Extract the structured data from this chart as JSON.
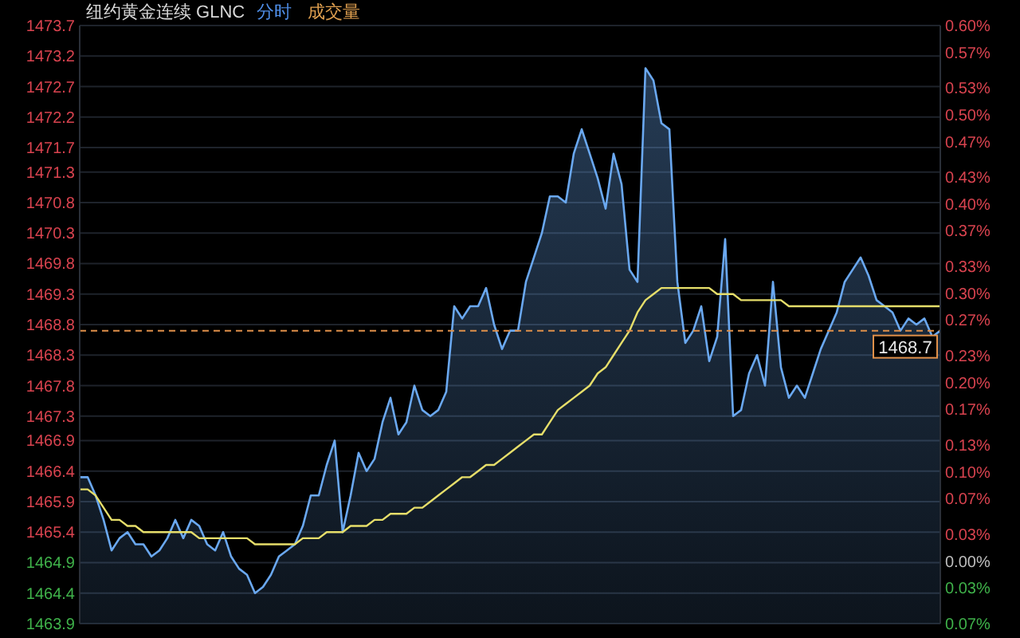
{
  "chart_data": {
    "type": "area",
    "title": "纽约黄金连续 GLNC",
    "annotations": [
      "分时",
      "成交量"
    ],
    "categories": [
      null,
      null,
      null,
      null,
      null,
      null,
      null,
      null,
      null,
      null,
      null,
      null,
      null,
      null,
      null,
      null,
      null,
      null,
      null,
      null,
      null,
      null,
      null,
      null,
      null,
      null,
      null,
      null,
      null,
      null,
      null,
      null,
      null,
      null,
      null,
      null,
      null,
      null,
      null,
      null,
      null,
      null,
      null,
      null,
      null,
      null,
      null,
      null,
      null,
      null,
      null,
      null,
      null,
      null,
      null,
      null,
      null,
      null,
      null,
      null,
      null,
      null,
      null,
      null,
      null,
      null,
      null,
      null,
      null,
      null,
      null,
      null,
      null,
      null,
      null,
      null,
      null,
      null,
      null,
      null,
      null,
      null,
      null,
      null,
      null,
      null,
      null,
      null,
      null,
      null,
      null,
      null,
      null,
      null,
      null,
      null,
      null,
      null,
      null,
      null,
      null,
      null,
      null,
      null,
      null,
      null,
      null,
      null,
      null
    ],
    "series": [
      {
        "type": "area",
        "color": "#6aa8f0",
        "values": [
          1466.3,
          1466.3,
          1466.0,
          1465.6,
          1465.1,
          1465.3,
          1465.4,
          1465.2,
          1465.2,
          1465.0,
          1465.1,
          1465.3,
          1465.6,
          1465.3,
          1465.6,
          1465.5,
          1465.2,
          1465.1,
          1465.4,
          1465.0,
          1464.8,
          1464.7,
          1464.4,
          1464.5,
          1464.7,
          1465.0,
          1465.1,
          1465.2,
          1465.5,
          1466.0,
          1466.0,
          1466.5,
          1466.9,
          1465.4,
          1466.0,
          1466.7,
          1466.4,
          1466.6,
          1467.2,
          1467.6,
          1467.0,
          1467.2,
          1467.8,
          1467.4,
          1467.3,
          1467.4,
          1467.7,
          1469.1,
          1468.9,
          1469.1,
          1469.1,
          1469.4,
          1468.8,
          1468.4,
          1468.7,
          1468.7,
          1469.5,
          1469.9,
          1470.3,
          1470.9,
          1470.9,
          1470.8,
          1471.6,
          1472.0,
          1471.6,
          1471.2,
          1470.7,
          1471.6,
          1471.1,
          1469.7,
          1469.5,
          1473.0,
          1472.8,
          1472.1,
          1472.0,
          1469.5,
          1468.5,
          1468.7,
          1469.1,
          1468.2,
          1468.6,
          1470.2,
          1467.3,
          1467.4,
          1468.0,
          1468.3,
          1467.8,
          1469.5,
          1468.1,
          1467.6,
          1467.8,
          1467.6,
          1468.0,
          1468.4,
          1468.7,
          1469.0,
          1469.5,
          1469.7,
          1469.9,
          1469.6,
          1469.2,
          1469.1,
          1469.0,
          1468.7,
          1468.9,
          1468.8,
          1468.9,
          1468.6,
          1468.7
        ]
      },
      {
        "type": "line",
        "color": "#e6de6a",
        "values": [
          1466.1,
          1466.1,
          1466.0,
          1465.8,
          1465.6,
          1465.6,
          1465.5,
          1465.5,
          1465.4,
          1465.4,
          1465.4,
          1465.4,
          1465.4,
          1465.4,
          1465.4,
          1465.3,
          1465.3,
          1465.3,
          1465.3,
          1465.3,
          1465.3,
          1465.3,
          1465.2,
          1465.2,
          1465.2,
          1465.2,
          1465.2,
          1465.2,
          1465.3,
          1465.3,
          1465.3,
          1465.4,
          1465.4,
          1465.4,
          1465.5,
          1465.5,
          1465.5,
          1465.6,
          1465.6,
          1465.7,
          1465.7,
          1465.7,
          1465.8,
          1465.8,
          1465.9,
          1466.0,
          1466.1,
          1466.2,
          1466.3,
          1466.3,
          1466.4,
          1466.5,
          1466.5,
          1466.6,
          1466.7,
          1466.8,
          1466.9,
          1467.0,
          1467.0,
          1467.2,
          1467.4,
          1467.5,
          1467.6,
          1467.7,
          1467.8,
          1468.0,
          1468.1,
          1468.3,
          1468.5,
          1468.7,
          1469.0,
          1469.2,
          1469.3,
          1469.4,
          1469.4,
          1469.4,
          1469.4,
          1469.4,
          1469.4,
          1469.4,
          1469.3,
          1469.3,
          1469.3,
          1469.2,
          1469.2,
          1469.2,
          1469.2,
          1469.2,
          1469.2,
          1469.1,
          1469.1,
          1469.1,
          1469.1,
          1469.1,
          1469.1,
          1469.1,
          1469.1,
          1469.1,
          1469.1,
          1469.1,
          1469.1,
          1469.1,
          1469.1,
          1469.1,
          1469.1,
          1469.1,
          1469.1,
          1469.1,
          1469.1
        ]
      }
    ],
    "ylim": [
      1463.9,
      1473.7
    ],
    "yticks": [
      1463.9,
      1464.4,
      1464.9,
      1465.4,
      1465.9,
      1466.4,
      1466.9,
      1467.3,
      1467.8,
      1468.3,
      1468.8,
      1469.3,
      1469.8,
      1470.3,
      1470.8,
      1471.3,
      1471.7,
      1472.2,
      1472.7,
      1473.2,
      1473.7
    ],
    "y2lim": [
      -0.07,
      0.6
    ],
    "y2ticks": [
      {
        "value": -0.07,
        "label": "0.07%"
      },
      {
        "value": -0.03,
        "label": "0.03%"
      },
      {
        "value": 0,
        "label": "0.00%"
      },
      {
        "value": 0.03,
        "label": "0.03%"
      },
      {
        "value": 0.07,
        "label": "0.07%"
      },
      {
        "value": 0.1,
        "label": "0.10%"
      },
      {
        "value": 0.13,
        "label": "0.13%"
      },
      {
        "value": 0.17,
        "label": "0.17%"
      },
      {
        "value": 0.2,
        "label": "0.20%"
      },
      {
        "value": 0.23,
        "label": "0.23%"
      },
      {
        "value": 0.27,
        "label": "0.27%"
      },
      {
        "value": 0.3,
        "label": "0.30%"
      },
      {
        "value": 0.33,
        "label": "0.33%"
      },
      {
        "value": 0.37,
        "label": "0.37%"
      },
      {
        "value": 0.4,
        "label": "0.40%"
      },
      {
        "value": 0.43,
        "label": "0.43%"
      },
      {
        "value": 0.47,
        "label": "0.47%"
      },
      {
        "value": 0.5,
        "label": "0.50%"
      },
      {
        "value": 0.53,
        "label": "0.53%"
      },
      {
        "value": 0.57,
        "label": "0.57%"
      },
      {
        "value": 0.6,
        "label": "0.60%"
      }
    ],
    "ref_lines": [
      {
        "axis": "y",
        "value": 1468.7,
        "label": "1468.7",
        "color": "#e0904a",
        "line_style": "dashed"
      }
    ],
    "grid": "y"
  }
}
